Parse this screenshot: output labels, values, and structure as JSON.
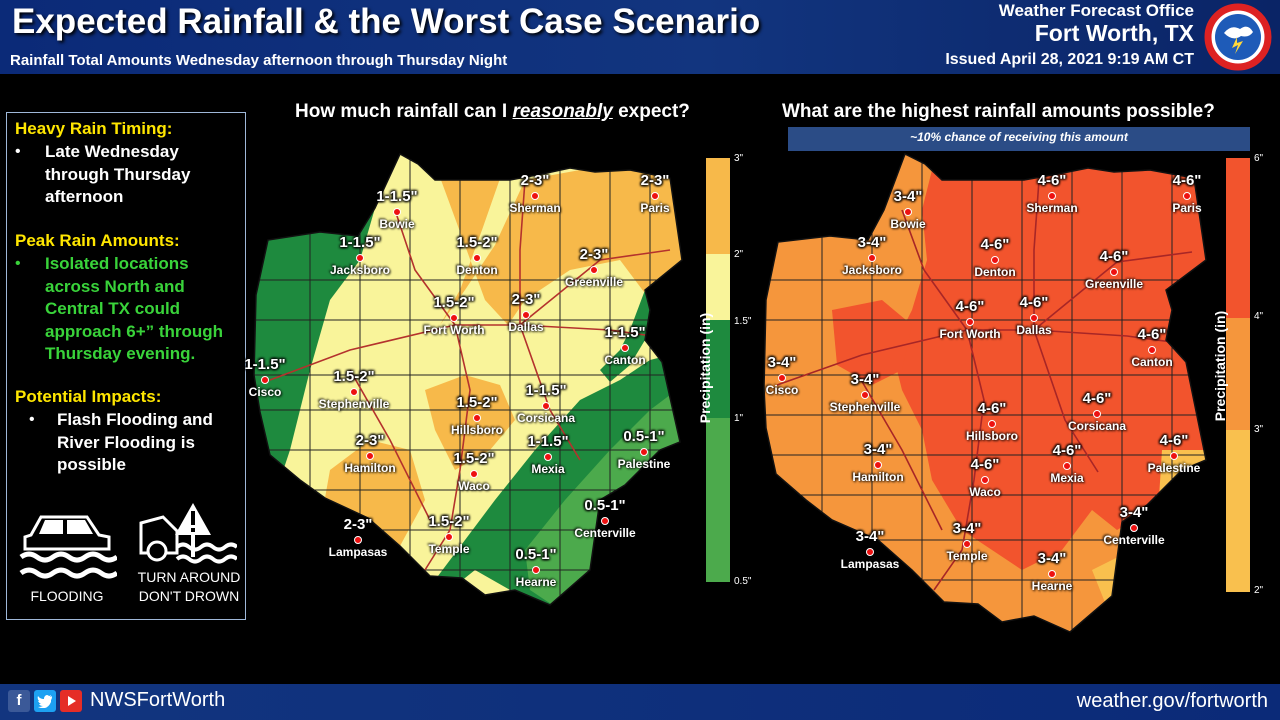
{
  "header": {
    "title": "Expected Rainfall & the Worst Case Scenario",
    "subtitle": "Rainfall Total Amounts Wednesday afternoon through Thursday Night",
    "office_line1": "Weather Forecast Office",
    "office_line2": "Fort Worth, TX",
    "issued": "Issued April 28, 2021 9:19 AM CT"
  },
  "sidebar": {
    "heavy_rain_heading": "Heavy Rain Timing:",
    "heavy_rain_text": [
      "Late Wednesday",
      "through Thursday",
      "afternoon"
    ],
    "peak_heading": "Peak Rain Amounts:",
    "peak_text": [
      "Isolated locations",
      "across North and",
      "Central TX could",
      "approach 6+” through",
      "Thursday evening."
    ],
    "impacts_heading": "Potential Impacts:",
    "impacts_text": [
      "Flash Flooding and",
      "River Flooding is",
      "possible"
    ],
    "bullet": "•",
    "icon_flooding_label": "FLOODING",
    "icon_turn_label_1": "TURN AROUND",
    "icon_turn_label_2": "DON'T DROWN"
  },
  "left_map": {
    "title_pre": "How much rainfall can I ",
    "title_emph": "reasonably",
    "title_post": " expect?",
    "scale_label": "Precipitation (in)",
    "scale_ticks": [
      "3\"",
      "2\"",
      "1.5\"",
      "1\"",
      "0.5\""
    ],
    "scale_colors": [
      "#f7b94a",
      "#f9f49a",
      "#1e8a3e",
      "#4caa4c"
    ],
    "cities": [
      {
        "name": "Bowie",
        "amount": "1-1.5\""
      },
      {
        "name": "Sherman",
        "amount": "2-3\""
      },
      {
        "name": "Paris",
        "amount": "2-3\""
      },
      {
        "name": "Jacksboro",
        "amount": "1-1.5\""
      },
      {
        "name": "Denton",
        "amount": "1.5-2\""
      },
      {
        "name": "Greenville",
        "amount": "2-3\""
      },
      {
        "name": "Fort Worth",
        "amount": "1.5-2\""
      },
      {
        "name": "Dallas",
        "amount": "2-3\""
      },
      {
        "name": "Canton",
        "amount": "1-1.5\""
      },
      {
        "name": "Cisco",
        "amount": "1-1.5\""
      },
      {
        "name": "Stephenville",
        "amount": "1.5-2\""
      },
      {
        "name": "Hillsboro",
        "amount": "1.5-2\""
      },
      {
        "name": "Corsicana",
        "amount": "1-1.5\""
      },
      {
        "name": "Hamilton",
        "amount": "2-3\""
      },
      {
        "name": "Waco",
        "amount": "1.5-2\""
      },
      {
        "name": "Mexia",
        "amount": "1-1.5\""
      },
      {
        "name": "Palestine",
        "amount": "0.5-1\""
      },
      {
        "name": "Centerville",
        "amount": "0.5-1\""
      },
      {
        "name": "Lampasas",
        "amount": "2-3\""
      },
      {
        "name": "Temple",
        "amount": "1.5-2\""
      },
      {
        "name": "Hearne",
        "amount": "0.5-1\""
      }
    ]
  },
  "right_map": {
    "title": "What are the highest rainfall amounts possible?",
    "banner": "~10% chance of receiving this amount",
    "scale_label": "Precipitation (in)",
    "scale_ticks": [
      "6\"",
      "4\"",
      "3\"",
      "2\""
    ],
    "scale_colors": [
      "#f2542d",
      "#f5963c",
      "#f9c04e"
    ],
    "cities": [
      {
        "name": "Bowie",
        "amount": "3-4\""
      },
      {
        "name": "Sherman",
        "amount": "4-6\""
      },
      {
        "name": "Paris",
        "amount": "4-6\""
      },
      {
        "name": "Jacksboro",
        "amount": "3-4\""
      },
      {
        "name": "Denton",
        "amount": "4-6\""
      },
      {
        "name": "Greenville",
        "amount": "4-6\""
      },
      {
        "name": "Fort Worth",
        "amount": "4-6\""
      },
      {
        "name": "Dallas",
        "amount": "4-6\""
      },
      {
        "name": "Canton",
        "amount": "4-6\""
      },
      {
        "name": "Cisco",
        "amount": "3-4\""
      },
      {
        "name": "Stephenville",
        "amount": "3-4\""
      },
      {
        "name": "Hillsboro",
        "amount": "4-6\""
      },
      {
        "name": "Corsicana",
        "amount": "4-6\""
      },
      {
        "name": "Hamilton",
        "amount": "3-4\""
      },
      {
        "name": "Waco",
        "amount": "4-6\""
      },
      {
        "name": "Mexia",
        "amount": "4-6\""
      },
      {
        "name": "Palestine",
        "amount": "4-6\""
      },
      {
        "name": "Centerville",
        "amount": "3-4\""
      },
      {
        "name": "Lampasas",
        "amount": "3-4\""
      },
      {
        "name": "Temple",
        "amount": "3-4\""
      },
      {
        "name": "Hearne",
        "amount": "3-4\""
      }
    ]
  },
  "footer": {
    "handle": "NWSFortWorth",
    "website": "weather.gov/fortworth"
  }
}
